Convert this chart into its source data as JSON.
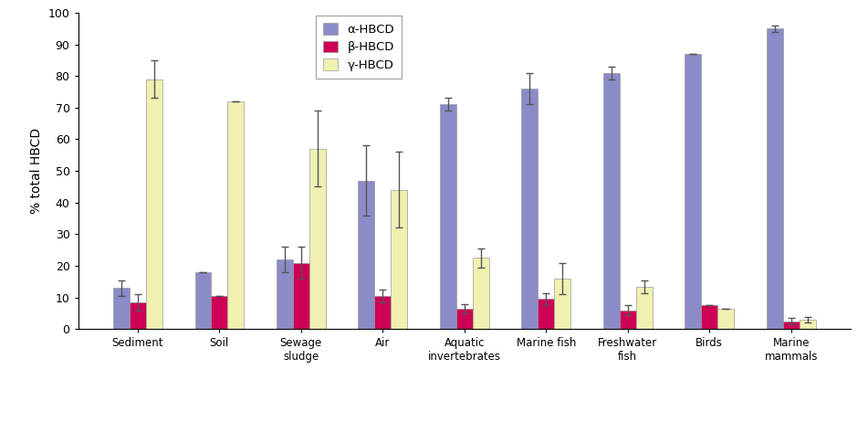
{
  "categories": [
    "Sediment",
    "Soil",
    "Sewage\nsludge",
    "Air",
    "Aquatic\ninvertebrates",
    "Marine fish",
    "Freshwater\nfish",
    "Birds",
    "Marine\nmammals"
  ],
  "alpha_values": [
    13,
    18,
    22,
    47,
    71,
    76,
    81,
    87,
    95
  ],
  "beta_values": [
    8.5,
    10.5,
    21,
    10.5,
    6.5,
    9.5,
    6,
    7.5,
    2.5
  ],
  "gamma_values": [
    79,
    72,
    57,
    44,
    22.5,
    16,
    13.5,
    6.5,
    3
  ],
  "alpha_errors": [
    2.5,
    0,
    4,
    11,
    2,
    5,
    2,
    0,
    1
  ],
  "beta_errors": [
    2.5,
    0,
    5,
    2,
    1.5,
    2,
    1.5,
    0,
    1
  ],
  "gamma_errors": [
    6,
    0,
    12,
    12,
    3,
    5,
    2,
    0,
    1
  ],
  "alpha_color": "#8b8bc8",
  "beta_color": "#cc0055",
  "gamma_color": "#f0f0b0",
  "bar_width": 0.2,
  "ylabel": "% total HBCD",
  "ylim": [
    0,
    100
  ],
  "yticks": [
    0,
    10,
    20,
    30,
    40,
    50,
    60,
    70,
    80,
    90,
    100
  ],
  "legend_labels": [
    "α-HBCD",
    "β-HBCD",
    "γ-HBCD"
  ]
}
